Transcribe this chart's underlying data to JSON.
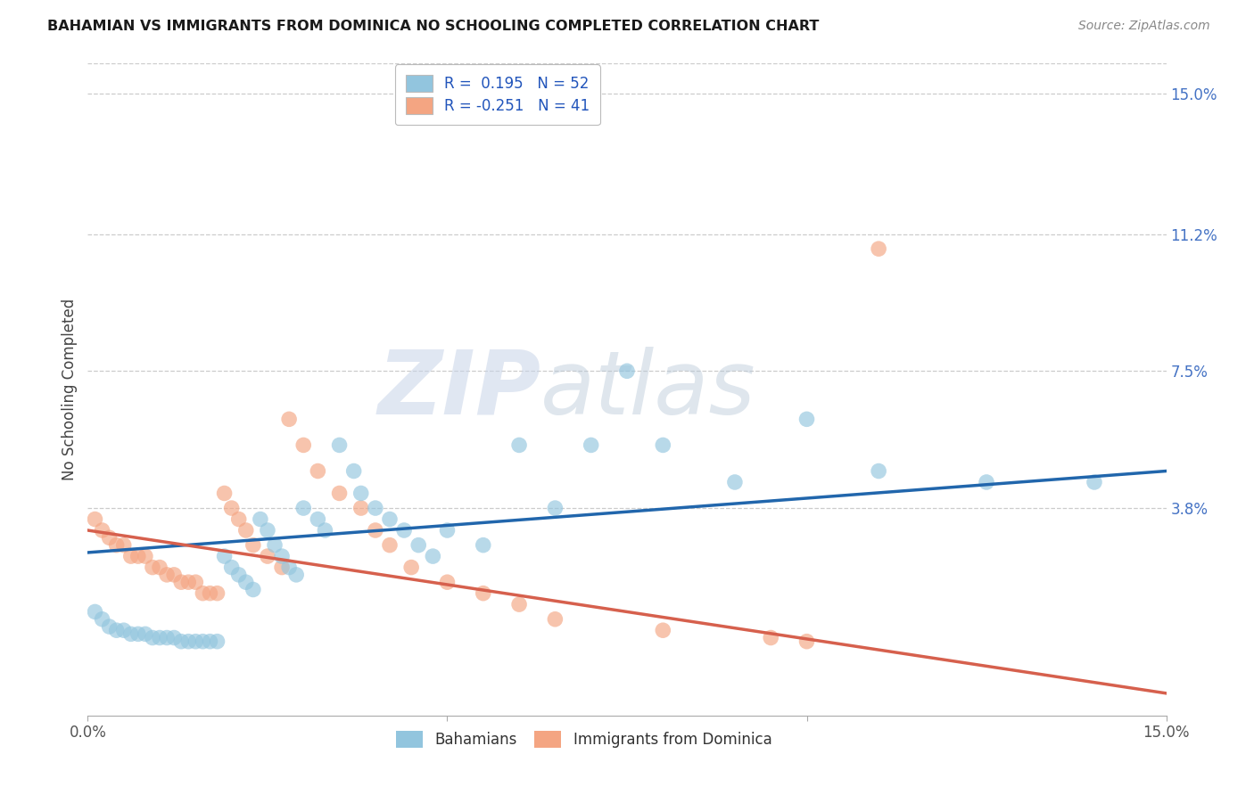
{
  "title": "BAHAMIAN VS IMMIGRANTS FROM DOMINICA NO SCHOOLING COMPLETED CORRELATION CHART",
  "source": "Source: ZipAtlas.com",
  "ylabel": "No Schooling Completed",
  "right_yticklabels": [
    "3.8%",
    "7.5%",
    "11.2%",
    "15.0%"
  ],
  "right_yticks": [
    0.038,
    0.075,
    0.112,
    0.15
  ],
  "xmin": 0.0,
  "xmax": 0.15,
  "ymin": -0.018,
  "ymax": 0.158,
  "watermark_zip": "ZIP",
  "watermark_atlas": "atlas",
  "legend_label1": "Bahamians",
  "legend_label2": "Immigrants from Dominica",
  "blue_color": "#92c5de",
  "pink_color": "#f4a582",
  "line_blue": "#2166ac",
  "line_pink": "#d6604d",
  "r1": 0.195,
  "n1": 52,
  "r2": -0.251,
  "n2": 41,
  "blue_x": [
    0.001,
    0.002,
    0.003,
    0.004,
    0.005,
    0.006,
    0.007,
    0.008,
    0.009,
    0.01,
    0.011,
    0.012,
    0.013,
    0.014,
    0.015,
    0.016,
    0.017,
    0.018,
    0.019,
    0.02,
    0.021,
    0.022,
    0.023,
    0.024,
    0.025,
    0.026,
    0.027,
    0.028,
    0.029,
    0.03,
    0.032,
    0.033,
    0.035,
    0.037,
    0.038,
    0.04,
    0.042,
    0.044,
    0.046,
    0.048,
    0.05,
    0.055,
    0.06,
    0.065,
    0.07,
    0.075,
    0.08,
    0.09,
    0.1,
    0.11,
    0.125,
    0.14
  ],
  "blue_y": [
    0.01,
    0.008,
    0.006,
    0.005,
    0.005,
    0.004,
    0.004,
    0.004,
    0.003,
    0.003,
    0.003,
    0.003,
    0.002,
    0.002,
    0.002,
    0.002,
    0.002,
    0.002,
    0.025,
    0.022,
    0.02,
    0.018,
    0.016,
    0.035,
    0.032,
    0.028,
    0.025,
    0.022,
    0.02,
    0.038,
    0.035,
    0.032,
    0.055,
    0.048,
    0.042,
    0.038,
    0.035,
    0.032,
    0.028,
    0.025,
    0.032,
    0.028,
    0.055,
    0.038,
    0.055,
    0.075,
    0.055,
    0.045,
    0.062,
    0.048,
    0.045,
    0.045
  ],
  "pink_x": [
    0.001,
    0.002,
    0.003,
    0.004,
    0.005,
    0.006,
    0.007,
    0.008,
    0.009,
    0.01,
    0.011,
    0.012,
    0.013,
    0.014,
    0.015,
    0.016,
    0.017,
    0.018,
    0.019,
    0.02,
    0.021,
    0.022,
    0.023,
    0.025,
    0.027,
    0.028,
    0.03,
    0.032,
    0.035,
    0.038,
    0.04,
    0.042,
    0.045,
    0.05,
    0.055,
    0.06,
    0.065,
    0.08,
    0.095,
    0.1,
    0.11
  ],
  "pink_y": [
    0.035,
    0.032,
    0.03,
    0.028,
    0.028,
    0.025,
    0.025,
    0.025,
    0.022,
    0.022,
    0.02,
    0.02,
    0.018,
    0.018,
    0.018,
    0.015,
    0.015,
    0.015,
    0.042,
    0.038,
    0.035,
    0.032,
    0.028,
    0.025,
    0.022,
    0.062,
    0.055,
    0.048,
    0.042,
    0.038,
    0.032,
    0.028,
    0.022,
    0.018,
    0.015,
    0.012,
    0.008,
    0.005,
    0.003,
    0.002,
    0.108
  ]
}
